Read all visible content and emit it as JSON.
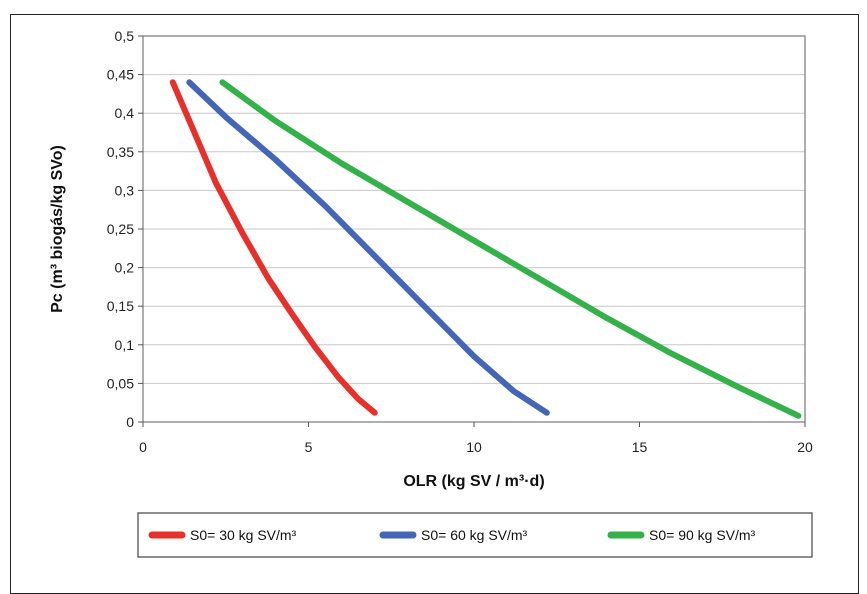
{
  "chart_data": {
    "type": "line",
    "title": "",
    "xlabel": "OLR (kg SV / m³·d)",
    "ylabel": "Pc (m³ biogás/kg SVo)",
    "xlim": [
      0,
      20
    ],
    "ylim": [
      0,
      0.5
    ],
    "xticks": [
      0,
      5,
      10,
      15,
      20
    ],
    "xtick_labels": [
      "0",
      "5",
      "10",
      "15",
      "20"
    ],
    "yticks": [
      0,
      0.05,
      0.1,
      0.15,
      0.2,
      0.25,
      0.3,
      0.35,
      0.4,
      0.45,
      0.5
    ],
    "ytick_labels": [
      "0",
      "0,05",
      "0,1",
      "0,15",
      "0,2",
      "0,25",
      "0,3",
      "0,35",
      "0,4",
      "0,45",
      "0,5"
    ],
    "grid": "horizontal",
    "legend_position": "bottom",
    "series": [
      {
        "name": "S0= 30 kg SV/m³",
        "color": "#e8302a",
        "x": [
          0.9,
          1.5,
          2.2,
          3.0,
          3.8,
          4.5,
          5.2,
          5.9,
          6.5,
          7.0
        ],
        "y": [
          0.44,
          0.38,
          0.31,
          0.245,
          0.185,
          0.14,
          0.097,
          0.058,
          0.03,
          0.012
        ]
      },
      {
        "name": "S0= 60 kg SV/m³",
        "color": "#4466b8",
        "x": [
          1.4,
          2.5,
          4.0,
          5.5,
          7.0,
          8.5,
          10.0,
          11.2,
          12.2
        ],
        "y": [
          0.44,
          0.395,
          0.34,
          0.28,
          0.215,
          0.15,
          0.085,
          0.04,
          0.012
        ]
      },
      {
        "name": "S0= 90 kg SV/m³",
        "color": "#33b24a",
        "x": [
          2.4,
          4.0,
          6.0,
          8.0,
          10.0,
          12.0,
          14.0,
          16.0,
          18.0,
          19.8
        ],
        "y": [
          0.44,
          0.39,
          0.335,
          0.285,
          0.235,
          0.185,
          0.135,
          0.088,
          0.045,
          0.008
        ]
      }
    ]
  }
}
